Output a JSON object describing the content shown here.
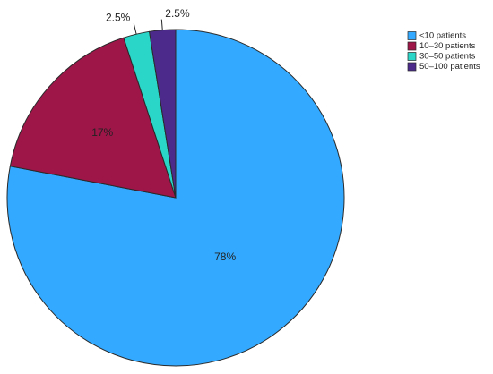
{
  "chart_data": {
    "type": "pie",
    "categories": [
      "<10 patients",
      "10–30 patients",
      "30–50 patients",
      "50–100 patients"
    ],
    "values": [
      78,
      17,
      2.5,
      2.5
    ],
    "value_labels": [
      "78%",
      "17%",
      "2.5%",
      "2.5%"
    ],
    "colors": [
      "#33aaff",
      "#9e1548",
      "#2ad6c8",
      "#4b2a8c"
    ],
    "legend": "upper right"
  }
}
